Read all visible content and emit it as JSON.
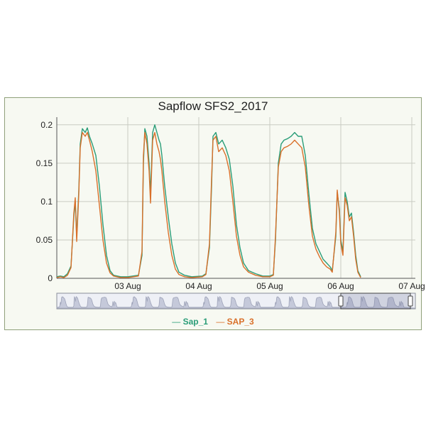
{
  "chart_data": {
    "type": "line",
    "title": "Sapflow SFS2_2017",
    "xlabel": "",
    "ylabel": "",
    "x_unit": "days (August)",
    "x_range": [
      2.0,
      7.05
    ],
    "ylim": [
      0,
      0.21
    ],
    "y_ticks": [
      0,
      0.05,
      0.1,
      0.15,
      0.2
    ],
    "y_tick_labels": [
      "0",
      "0.05",
      "0.1",
      "0.15",
      "0.2"
    ],
    "x_ticks": [
      3,
      4,
      5,
      6,
      7
    ],
    "x_tick_labels": [
      "03 Aug",
      "04 Aug",
      "05 Aug",
      "06 Aug",
      "07 Aug"
    ],
    "grid": true,
    "legend_position": "bottom-center",
    "range_selector": true,
    "series": [
      {
        "name": "Sap_1",
        "color": "#2a9d78",
        "points": [
          [
            2.0,
            0.002
          ],
          [
            2.05,
            0.003
          ],
          [
            2.1,
            0.002
          ],
          [
            2.15,
            0.006
          ],
          [
            2.2,
            0.016
          ],
          [
            2.24,
            0.08
          ],
          [
            2.26,
            0.1
          ],
          [
            2.28,
            0.055
          ],
          [
            2.31,
            0.115
          ],
          [
            2.33,
            0.175
          ],
          [
            2.36,
            0.195
          ],
          [
            2.4,
            0.19
          ],
          [
            2.43,
            0.196
          ],
          [
            2.46,
            0.185
          ],
          [
            2.5,
            0.175
          ],
          [
            2.55,
            0.16
          ],
          [
            2.6,
            0.12
          ],
          [
            2.65,
            0.07
          ],
          [
            2.7,
            0.03
          ],
          [
            2.75,
            0.01
          ],
          [
            2.8,
            0.004
          ],
          [
            2.9,
            0.002
          ],
          [
            3.0,
            0.002
          ],
          [
            3.15,
            0.004
          ],
          [
            3.2,
            0.03
          ],
          [
            3.22,
            0.15
          ],
          [
            3.24,
            0.195
          ],
          [
            3.27,
            0.185
          ],
          [
            3.3,
            0.15
          ],
          [
            3.32,
            0.11
          ],
          [
            3.35,
            0.19
          ],
          [
            3.38,
            0.2
          ],
          [
            3.41,
            0.19
          ],
          [
            3.44,
            0.18
          ],
          [
            3.46,
            0.175
          ],
          [
            3.48,
            0.16
          ],
          [
            3.52,
            0.12
          ],
          [
            3.57,
            0.08
          ],
          [
            3.62,
            0.045
          ],
          [
            3.67,
            0.02
          ],
          [
            3.72,
            0.008
          ],
          [
            3.8,
            0.004
          ],
          [
            3.9,
            0.002
          ],
          [
            4.05,
            0.003
          ],
          [
            4.1,
            0.006
          ],
          [
            4.15,
            0.04
          ],
          [
            4.18,
            0.12
          ],
          [
            4.2,
            0.185
          ],
          [
            4.24,
            0.19
          ],
          [
            4.28,
            0.175
          ],
          [
            4.33,
            0.18
          ],
          [
            4.38,
            0.17
          ],
          [
            4.43,
            0.155
          ],
          [
            4.48,
            0.12
          ],
          [
            4.53,
            0.07
          ],
          [
            4.58,
            0.04
          ],
          [
            4.63,
            0.02
          ],
          [
            4.7,
            0.01
          ],
          [
            4.8,
            0.006
          ],
          [
            4.9,
            0.003
          ],
          [
            5.0,
            0.003
          ],
          [
            5.05,
            0.005
          ],
          [
            5.08,
            0.05
          ],
          [
            5.12,
            0.15
          ],
          [
            5.16,
            0.175
          ],
          [
            5.2,
            0.18
          ],
          [
            5.25,
            0.182
          ],
          [
            5.3,
            0.185
          ],
          [
            5.35,
            0.19
          ],
          [
            5.4,
            0.185
          ],
          [
            5.45,
            0.185
          ],
          [
            5.5,
            0.16
          ],
          [
            5.55,
            0.11
          ],
          [
            5.6,
            0.065
          ],
          [
            5.65,
            0.045
          ],
          [
            5.7,
            0.035
          ],
          [
            5.75,
            0.025
          ],
          [
            5.8,
            0.02
          ],
          [
            5.85,
            0.015
          ],
          [
            5.88,
            0.01
          ],
          [
            5.93,
            0.055
          ],
          [
            5.95,
            0.112
          ],
          [
            5.98,
            0.09
          ],
          [
            6.0,
            0.05
          ],
          [
            6.03,
            0.035
          ],
          [
            6.06,
            0.112
          ],
          [
            6.09,
            0.1
          ],
          [
            6.12,
            0.08
          ],
          [
            6.15,
            0.085
          ],
          [
            6.18,
            0.06
          ],
          [
            6.21,
            0.03
          ],
          [
            6.24,
            0.01
          ],
          [
            6.28,
            0.002
          ]
        ]
      },
      {
        "name": "SAP_3",
        "color": "#d9702a",
        "points": [
          [
            2.0,
            0.001
          ],
          [
            2.05,
            0.002
          ],
          [
            2.1,
            0.001
          ],
          [
            2.15,
            0.004
          ],
          [
            2.2,
            0.014
          ],
          [
            2.24,
            0.085
          ],
          [
            2.26,
            0.105
          ],
          [
            2.28,
            0.048
          ],
          [
            2.31,
            0.11
          ],
          [
            2.33,
            0.17
          ],
          [
            2.36,
            0.19
          ],
          [
            2.4,
            0.185
          ],
          [
            2.43,
            0.19
          ],
          [
            2.46,
            0.18
          ],
          [
            2.5,
            0.165
          ],
          [
            2.55,
            0.14
          ],
          [
            2.6,
            0.095
          ],
          [
            2.65,
            0.05
          ],
          [
            2.7,
            0.02
          ],
          [
            2.75,
            0.007
          ],
          [
            2.8,
            0.003
          ],
          [
            2.9,
            0.001
          ],
          [
            3.0,
            0.001
          ],
          [
            3.15,
            0.003
          ],
          [
            3.2,
            0.035
          ],
          [
            3.22,
            0.16
          ],
          [
            3.24,
            0.19
          ],
          [
            3.27,
            0.175
          ],
          [
            3.3,
            0.14
          ],
          [
            3.32,
            0.098
          ],
          [
            3.35,
            0.18
          ],
          [
            3.38,
            0.19
          ],
          [
            3.41,
            0.175
          ],
          [
            3.44,
            0.165
          ],
          [
            3.46,
            0.155
          ],
          [
            3.48,
            0.14
          ],
          [
            3.52,
            0.1
          ],
          [
            3.57,
            0.06
          ],
          [
            3.62,
            0.03
          ],
          [
            3.67,
            0.012
          ],
          [
            3.72,
            0.005
          ],
          [
            3.8,
            0.002
          ],
          [
            3.9,
            0.001
          ],
          [
            4.05,
            0.002
          ],
          [
            4.1,
            0.005
          ],
          [
            4.15,
            0.045
          ],
          [
            4.18,
            0.13
          ],
          [
            4.2,
            0.18
          ],
          [
            4.24,
            0.185
          ],
          [
            4.28,
            0.165
          ],
          [
            4.33,
            0.17
          ],
          [
            4.38,
            0.16
          ],
          [
            4.43,
            0.14
          ],
          [
            4.48,
            0.1
          ],
          [
            4.53,
            0.055
          ],
          [
            4.58,
            0.03
          ],
          [
            4.63,
            0.015
          ],
          [
            4.7,
            0.008
          ],
          [
            4.8,
            0.004
          ],
          [
            4.9,
            0.002
          ],
          [
            5.0,
            0.002
          ],
          [
            5.05,
            0.004
          ],
          [
            5.08,
            0.055
          ],
          [
            5.12,
            0.145
          ],
          [
            5.16,
            0.165
          ],
          [
            5.2,
            0.17
          ],
          [
            5.25,
            0.172
          ],
          [
            5.3,
            0.175
          ],
          [
            5.35,
            0.18
          ],
          [
            5.4,
            0.175
          ],
          [
            5.45,
            0.17
          ],
          [
            5.5,
            0.145
          ],
          [
            5.55,
            0.095
          ],
          [
            5.6,
            0.055
          ],
          [
            5.65,
            0.038
          ],
          [
            5.7,
            0.028
          ],
          [
            5.75,
            0.02
          ],
          [
            5.8,
            0.015
          ],
          [
            5.85,
            0.012
          ],
          [
            5.88,
            0.008
          ],
          [
            5.93,
            0.06
          ],
          [
            5.95,
            0.115
          ],
          [
            5.98,
            0.085
          ],
          [
            6.0,
            0.045
          ],
          [
            6.03,
            0.03
          ],
          [
            6.06,
            0.105
          ],
          [
            6.09,
            0.095
          ],
          [
            6.12,
            0.075
          ],
          [
            6.15,
            0.08
          ],
          [
            6.18,
            0.055
          ],
          [
            6.21,
            0.025
          ],
          [
            6.24,
            0.008
          ],
          [
            6.28,
            0.001
          ]
        ]
      }
    ]
  }
}
